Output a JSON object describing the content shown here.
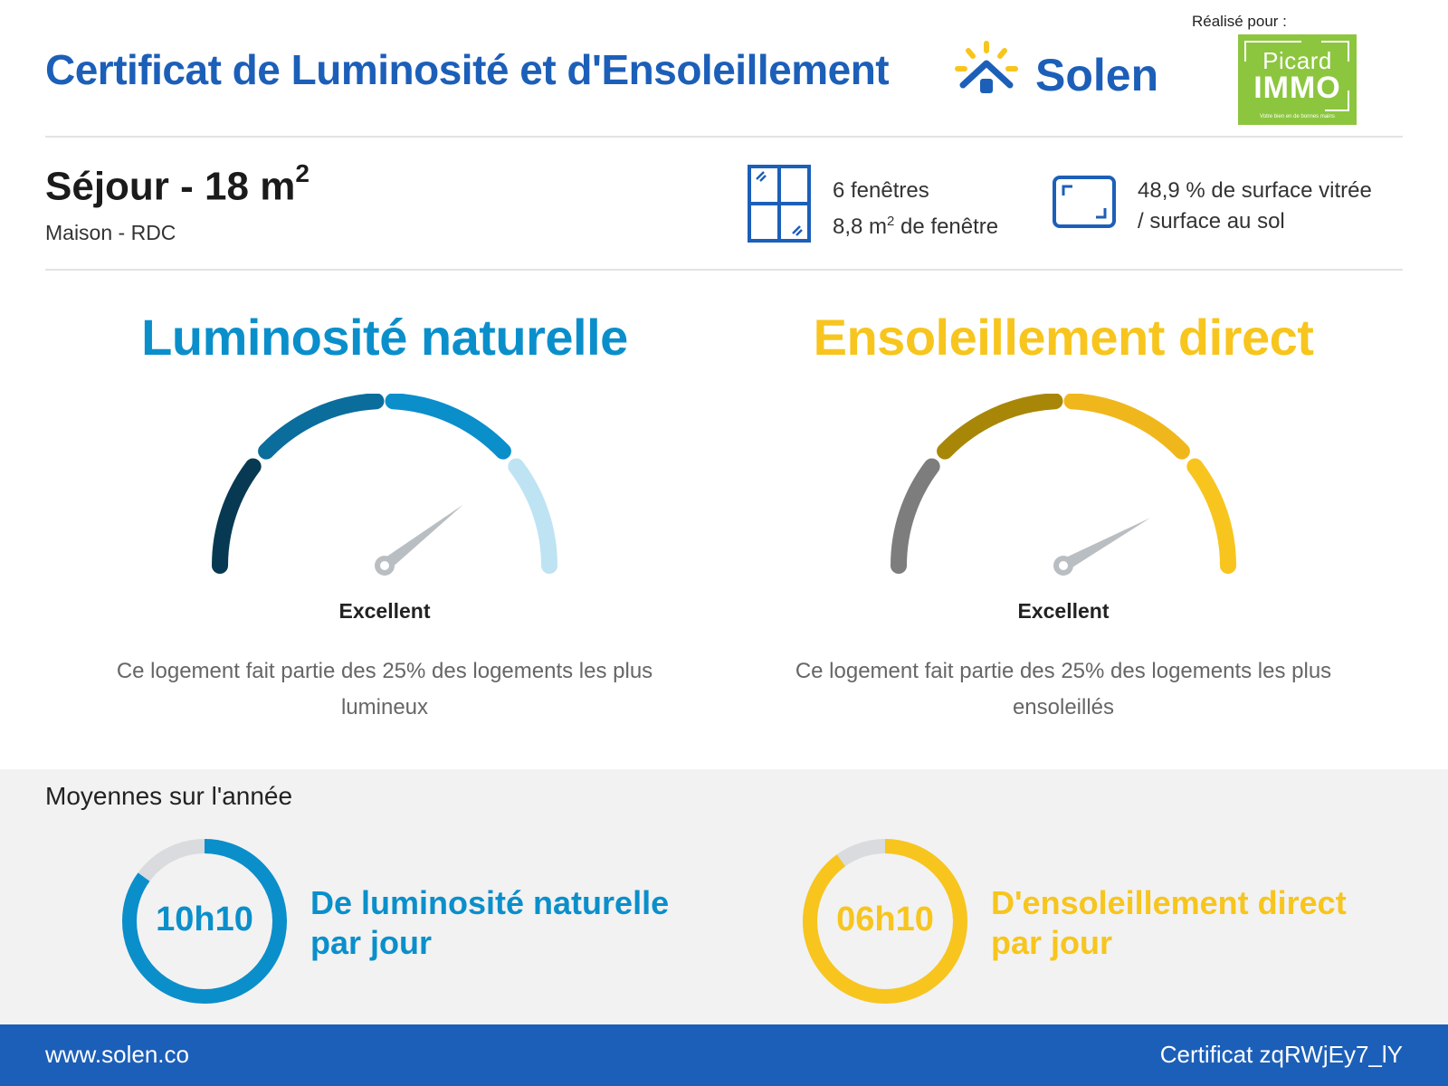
{
  "header": {
    "title": "Certificat de Luminosité et d'Ensoleillement",
    "brand": "Solen",
    "made_for_label": "Réalisé pour :",
    "client": {
      "line1": "Picard",
      "line2": "IMMO",
      "tagline": "Votre bien en de bonnes mains"
    },
    "colors": {
      "brand_blue": "#1c5fb8",
      "sun_yellow": "#f7c51d",
      "client_green": "#8cc63f"
    }
  },
  "room": {
    "title": "Séjour - 18 m",
    "title_sup": "2",
    "subtitle": "Maison - RDC",
    "windows_count": "6 fenêtres",
    "window_area_prefix": "8,8 m",
    "window_area_sup": "2",
    "window_area_suffix": " de fenêtre",
    "glazing_line1": "48,9 % de surface vitrée",
    "glazing_line2": "/ surface au sol",
    "icons": [
      "window-icon",
      "surface-icon"
    ]
  },
  "luminosity": {
    "title": "Luminosité naturelle",
    "rating": "Excellent",
    "description": "Ce logement fait partie des 25% des logements les plus lumineux",
    "level": 0.79,
    "color": "#0a8fcb",
    "segments": [
      "#073a52",
      "#0a6d9c",
      "#0a8fcb",
      "#bee3f3"
    ]
  },
  "sunshine": {
    "title": "Ensoleillement direct",
    "rating": "Excellent",
    "description": "Ce logement fait partie des 25% des logements les plus ensoleillés",
    "level": 0.84,
    "color": "#f7c51d",
    "segments": [
      "#7d7d7d",
      "#a88708",
      "#f0b71d",
      "#f7c51d"
    ]
  },
  "averages": {
    "title": "Moyennes sur l'année",
    "luminosity": {
      "value": "10h10",
      "fraction": 0.85,
      "line1": "De luminosité naturelle",
      "line2": "par jour"
    },
    "sunshine": {
      "value": "06h10",
      "fraction": 0.9,
      "line1": "D'ensoleillement direct",
      "line2": "par jour"
    }
  },
  "footer": {
    "website": "www.solen.co",
    "certificate": "Certificat zqRWjEy7_lY"
  }
}
